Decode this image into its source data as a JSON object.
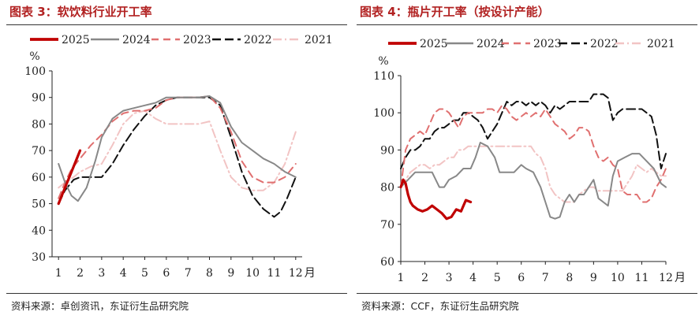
{
  "source_left": "资料来源：卓创资讯，东证衍生品研究院",
  "source_right": "资料来源：CCF，东证衍生品研究院",
  "colors": {
    "title": "#b22222",
    "y2025": "#c00000",
    "y2024": "#888888",
    "y2023": "#e07070",
    "y2022": "#111111",
    "y2021": "#f2c4c4"
  },
  "chart_data": [
    {
      "type": "line",
      "title": "图表 3：软饮料行业开工率",
      "ylabel": "%",
      "xlabel": "月",
      "ylim": [
        30,
        100
      ],
      "yticks": [
        30,
        40,
        50,
        60,
        70,
        80,
        90,
        100
      ],
      "xlim": [
        0.7,
        12.3
      ],
      "xticks": [
        1,
        2,
        3,
        4,
        5,
        6,
        7,
        8,
        9,
        10,
        11,
        12
      ],
      "series": [
        {
          "name": "2025",
          "style": "y2025",
          "x": [
            1,
            1.25,
            1.5,
            1.75,
            2
          ],
          "y": [
            50,
            55,
            60,
            65,
            70
          ]
        },
        {
          "name": "2024",
          "style": "y2024",
          "x": [
            1,
            1.3,
            1.6,
            1.9,
            2.3,
            2.7,
            3,
            3.5,
            4,
            4.5,
            5,
            5.5,
            6,
            6.5,
            7,
            7.5,
            8,
            8.5,
            9,
            9.5,
            10,
            10.5,
            11,
            11.5,
            12
          ],
          "y": [
            65,
            58,
            53,
            51,
            56,
            66,
            75,
            82,
            85,
            86,
            87,
            88,
            90,
            90,
            90,
            90,
            90.5,
            88,
            79,
            73,
            70,
            67,
            65,
            62,
            60
          ]
        },
        {
          "name": "2023",
          "style": "y2023",
          "x": [
            1,
            1.3,
            1.6,
            2,
            2.5,
            3,
            3.5,
            4,
            4.5,
            5,
            5.5,
            6,
            6.5,
            7,
            7.5,
            8,
            8.5,
            9,
            9.5,
            10,
            10.5,
            11,
            11.5,
            12
          ],
          "y": [
            52,
            58,
            63,
            67,
            72,
            76,
            81,
            84,
            85,
            85,
            86,
            89,
            90,
            90,
            90,
            90.5,
            86,
            77,
            66,
            60,
            58,
            58,
            60,
            65
          ]
        },
        {
          "name": "2022",
          "style": "y2022",
          "x": [
            1,
            1.3,
            1.7,
            2,
            2.3,
            2.7,
            3,
            3.5,
            4,
            4.5,
            5,
            5.5,
            6,
            6.5,
            7,
            7.5,
            8,
            8.5,
            9,
            9.5,
            10,
            10.5,
            11,
            11.3,
            11.6,
            12
          ],
          "y": [
            50,
            55,
            59,
            60,
            60,
            60,
            60,
            65,
            72,
            78,
            83,
            87,
            89,
            90,
            90,
            90,
            90,
            87,
            75,
            62,
            53,
            48,
            45,
            47,
            52,
            60
          ]
        },
        {
          "name": "2021",
          "style": "y2021",
          "x": [
            1,
            1.3,
            1.7,
            2,
            2.5,
            3,
            3.5,
            4,
            4.5,
            5,
            5.5,
            6,
            6.5,
            7,
            7.5,
            8,
            8.5,
            9,
            9.5,
            10,
            10.5,
            11,
            11.5,
            12
          ],
          "y": [
            56,
            58,
            60,
            62,
            64,
            65,
            72,
            80,
            84,
            85,
            82,
            80,
            80,
            80,
            80,
            81,
            70,
            60,
            56,
            55,
            55,
            58,
            65,
            77
          ]
        }
      ]
    },
    {
      "type": "line",
      "title": "图表 4：瓶片开工率（按设计产能）",
      "ylabel": "%",
      "xlabel": "月",
      "ylim": [
        60,
        110
      ],
      "yticks": [
        60,
        70,
        80,
        90,
        100,
        110
      ],
      "xlim": [
        1,
        12
      ],
      "xticks": [
        1,
        2,
        3,
        4,
        5,
        6,
        7,
        8,
        9,
        10,
        11,
        12
      ],
      "series": [
        {
          "name": "2025",
          "style": "y2025",
          "x": [
            1,
            1.1,
            1.2,
            1.3,
            1.4,
            1.5,
            1.7,
            1.9,
            2.1,
            2.3,
            2.5,
            2.7,
            2.9,
            3.1,
            3.3,
            3.5,
            3.6,
            3.7,
            3.9
          ],
          "y": [
            80,
            82,
            81,
            78,
            76,
            75,
            74,
            73.5,
            74,
            75,
            74,
            73,
            71.5,
            72,
            74,
            73.5,
            75,
            76.5,
            76
          ]
        },
        {
          "name": "2024",
          "style": "y2024",
          "x": [
            1,
            1.3,
            1.6,
            2,
            2.3,
            2.6,
            2.8,
            3,
            3.3,
            3.6,
            3.9,
            4.1,
            4.3,
            4.6,
            4.9,
            5.1,
            5.4,
            5.7,
            6,
            6.2,
            6.5,
            6.8,
            7,
            7.2,
            7.4,
            7.6,
            7.8,
            8,
            8.2,
            8.4,
            8.6,
            8.8,
            9,
            9.2,
            9.4,
            9.6,
            9.8,
            10,
            10.3,
            10.6,
            10.9,
            11.2,
            11.5,
            11.8,
            12
          ],
          "y": [
            80,
            82,
            84,
            84,
            84,
            80,
            80,
            82,
            83,
            85,
            85,
            88,
            92,
            91,
            88,
            84,
            84,
            84,
            86,
            85,
            84,
            80,
            76,
            72,
            71.5,
            72,
            76,
            78,
            76,
            78,
            78,
            80,
            82,
            77,
            76,
            75,
            83,
            87,
            88,
            89,
            89,
            87,
            85,
            81,
            80
          ]
        },
        {
          "name": "2023",
          "style": "y2023",
          "x": [
            1,
            1.2,
            1.4,
            1.6,
            1.8,
            2,
            2.2,
            2.4,
            2.6,
            2.8,
            3,
            3.2,
            3.4,
            3.6,
            3.8,
            4,
            4.2,
            4.4,
            4.6,
            4.8,
            5,
            5.2,
            5.4,
            5.6,
            5.8,
            6,
            6.2,
            6.4,
            6.6,
            6.8,
            7,
            7.2,
            7.4,
            7.6,
            7.8,
            8,
            8.2,
            8.4,
            8.6,
            8.8,
            9,
            9.2,
            9.4,
            9.6,
            9.8,
            10,
            10.2,
            10.4,
            10.6,
            10.8,
            11,
            11.2,
            11.4,
            11.6,
            11.8,
            12
          ],
          "y": [
            80,
            90,
            93,
            94,
            95,
            94,
            97,
            100,
            101,
            101,
            100,
            98,
            96,
            99,
            100,
            100,
            100,
            100,
            101,
            101,
            100,
            102,
            101,
            99,
            98,
            99,
            100,
            99,
            100,
            99,
            101,
            99,
            97,
            96,
            95,
            93,
            94,
            96,
            96,
            95,
            91,
            88,
            87,
            88,
            86,
            85,
            79,
            78,
            78,
            78,
            76,
            76,
            77,
            80,
            82,
            85
          ]
        },
        {
          "name": "2022",
          "style": "y2022",
          "x": [
            1,
            1.2,
            1.4,
            1.6,
            1.8,
            2,
            2.2,
            2.4,
            2.6,
            2.8,
            3,
            3.2,
            3.4,
            3.6,
            3.8,
            4,
            4.2,
            4.4,
            4.6,
            4.8,
            5,
            5.2,
            5.4,
            5.6,
            5.8,
            6,
            6.2,
            6.4,
            6.6,
            6.8,
            7,
            7.2,
            7.4,
            7.6,
            7.8,
            8,
            8.2,
            8.4,
            8.6,
            8.8,
            9,
            9.2,
            9.4,
            9.6,
            9.8,
            10,
            10.2,
            10.4,
            10.6,
            10.8,
            11,
            11.2,
            11.4,
            11.6,
            11.8,
            12
          ],
          "y": [
            85,
            88,
            90,
            90,
            91,
            93,
            93,
            95,
            96,
            96,
            97,
            98,
            98,
            100,
            100,
            99,
            98,
            96,
            93,
            95,
            97,
            100,
            103,
            102,
            103,
            103,
            102,
            103,
            102,
            103,
            102,
            100,
            102,
            101,
            102,
            103,
            103,
            103,
            103,
            103,
            105,
            105,
            105,
            104,
            98,
            100,
            101,
            101,
            101,
            101,
            101,
            100,
            99,
            94,
            85,
            89
          ]
        },
        {
          "name": "2021",
          "style": "y2021",
          "x": [
            1,
            1.2,
            1.4,
            1.6,
            1.8,
            2,
            2.2,
            2.4,
            2.6,
            2.8,
            3,
            3.2,
            3.4,
            3.6,
            3.8,
            4,
            4.2,
            4.4,
            4.6,
            4.8,
            5,
            5.2,
            5.4,
            5.6,
            5.8,
            6,
            6.2,
            6.4,
            6.6,
            6.8,
            7,
            7.2,
            7.4,
            7.6,
            7.8,
            8,
            8.2,
            8.4,
            8.6,
            8.8,
            9,
            9.2,
            9.4,
            9.6,
            9.8,
            10,
            10.2,
            10.4,
            10.6,
            10.8,
            11,
            11.2,
            11.4,
            11.6,
            11.8,
            12
          ],
          "y": [
            80,
            82,
            84,
            85,
            86,
            86,
            85,
            86,
            86,
            87,
            88,
            88,
            90,
            90,
            91,
            91,
            91,
            91,
            91,
            91,
            91,
            91,
            91,
            91,
            91,
            91,
            91,
            91,
            89,
            88,
            85,
            80,
            78,
            77,
            76,
            76,
            76,
            78,
            79,
            80,
            80,
            79,
            79,
            79,
            79,
            79,
            79,
            81,
            83,
            86,
            85,
            84,
            85,
            84,
            83,
            83
          ]
        }
      ]
    }
  ]
}
